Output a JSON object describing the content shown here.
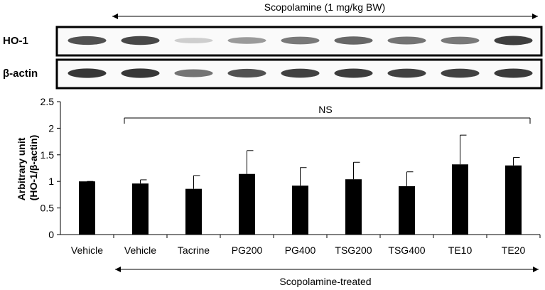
{
  "blot": {
    "top_label": "Scopolamine (1 mg/kg BW)",
    "rows": [
      {
        "label": "HO-1",
        "band_strength": [
          0.78,
          0.82,
          0.22,
          0.45,
          0.6,
          0.68,
          0.62,
          0.6,
          0.86
        ]
      },
      {
        "label": "β-actin",
        "band_strength": [
          0.9,
          0.9,
          0.62,
          0.78,
          0.85,
          0.87,
          0.85,
          0.85,
          0.88
        ]
      }
    ]
  },
  "chart_data": {
    "type": "bar",
    "categories": [
      "Vehicle",
      "Vehicle",
      "Tacrine",
      "PG200",
      "PG400",
      "TSG200",
      "TSG400",
      "TE10",
      "TE20"
    ],
    "series": [
      {
        "values": [
          1.0,
          0.96,
          0.86,
          1.14,
          0.92,
          1.04,
          0.91,
          1.32,
          1.3
        ],
        "errors": [
          0.0,
          0.07,
          0.25,
          0.44,
          0.34,
          0.32,
          0.27,
          0.55,
          0.15
        ]
      }
    ],
    "ylabel": "Arbitrary unit\n(HO-1/β-actin)",
    "ylim": [
      0,
      2.5
    ],
    "yticks": [
      "0",
      "0.5",
      "1",
      "1.5",
      "2",
      "2.5"
    ],
    "grid": false,
    "bar_color": "#000000",
    "annotation": "NS",
    "bottom_label": "Scopolamine-treated"
  }
}
